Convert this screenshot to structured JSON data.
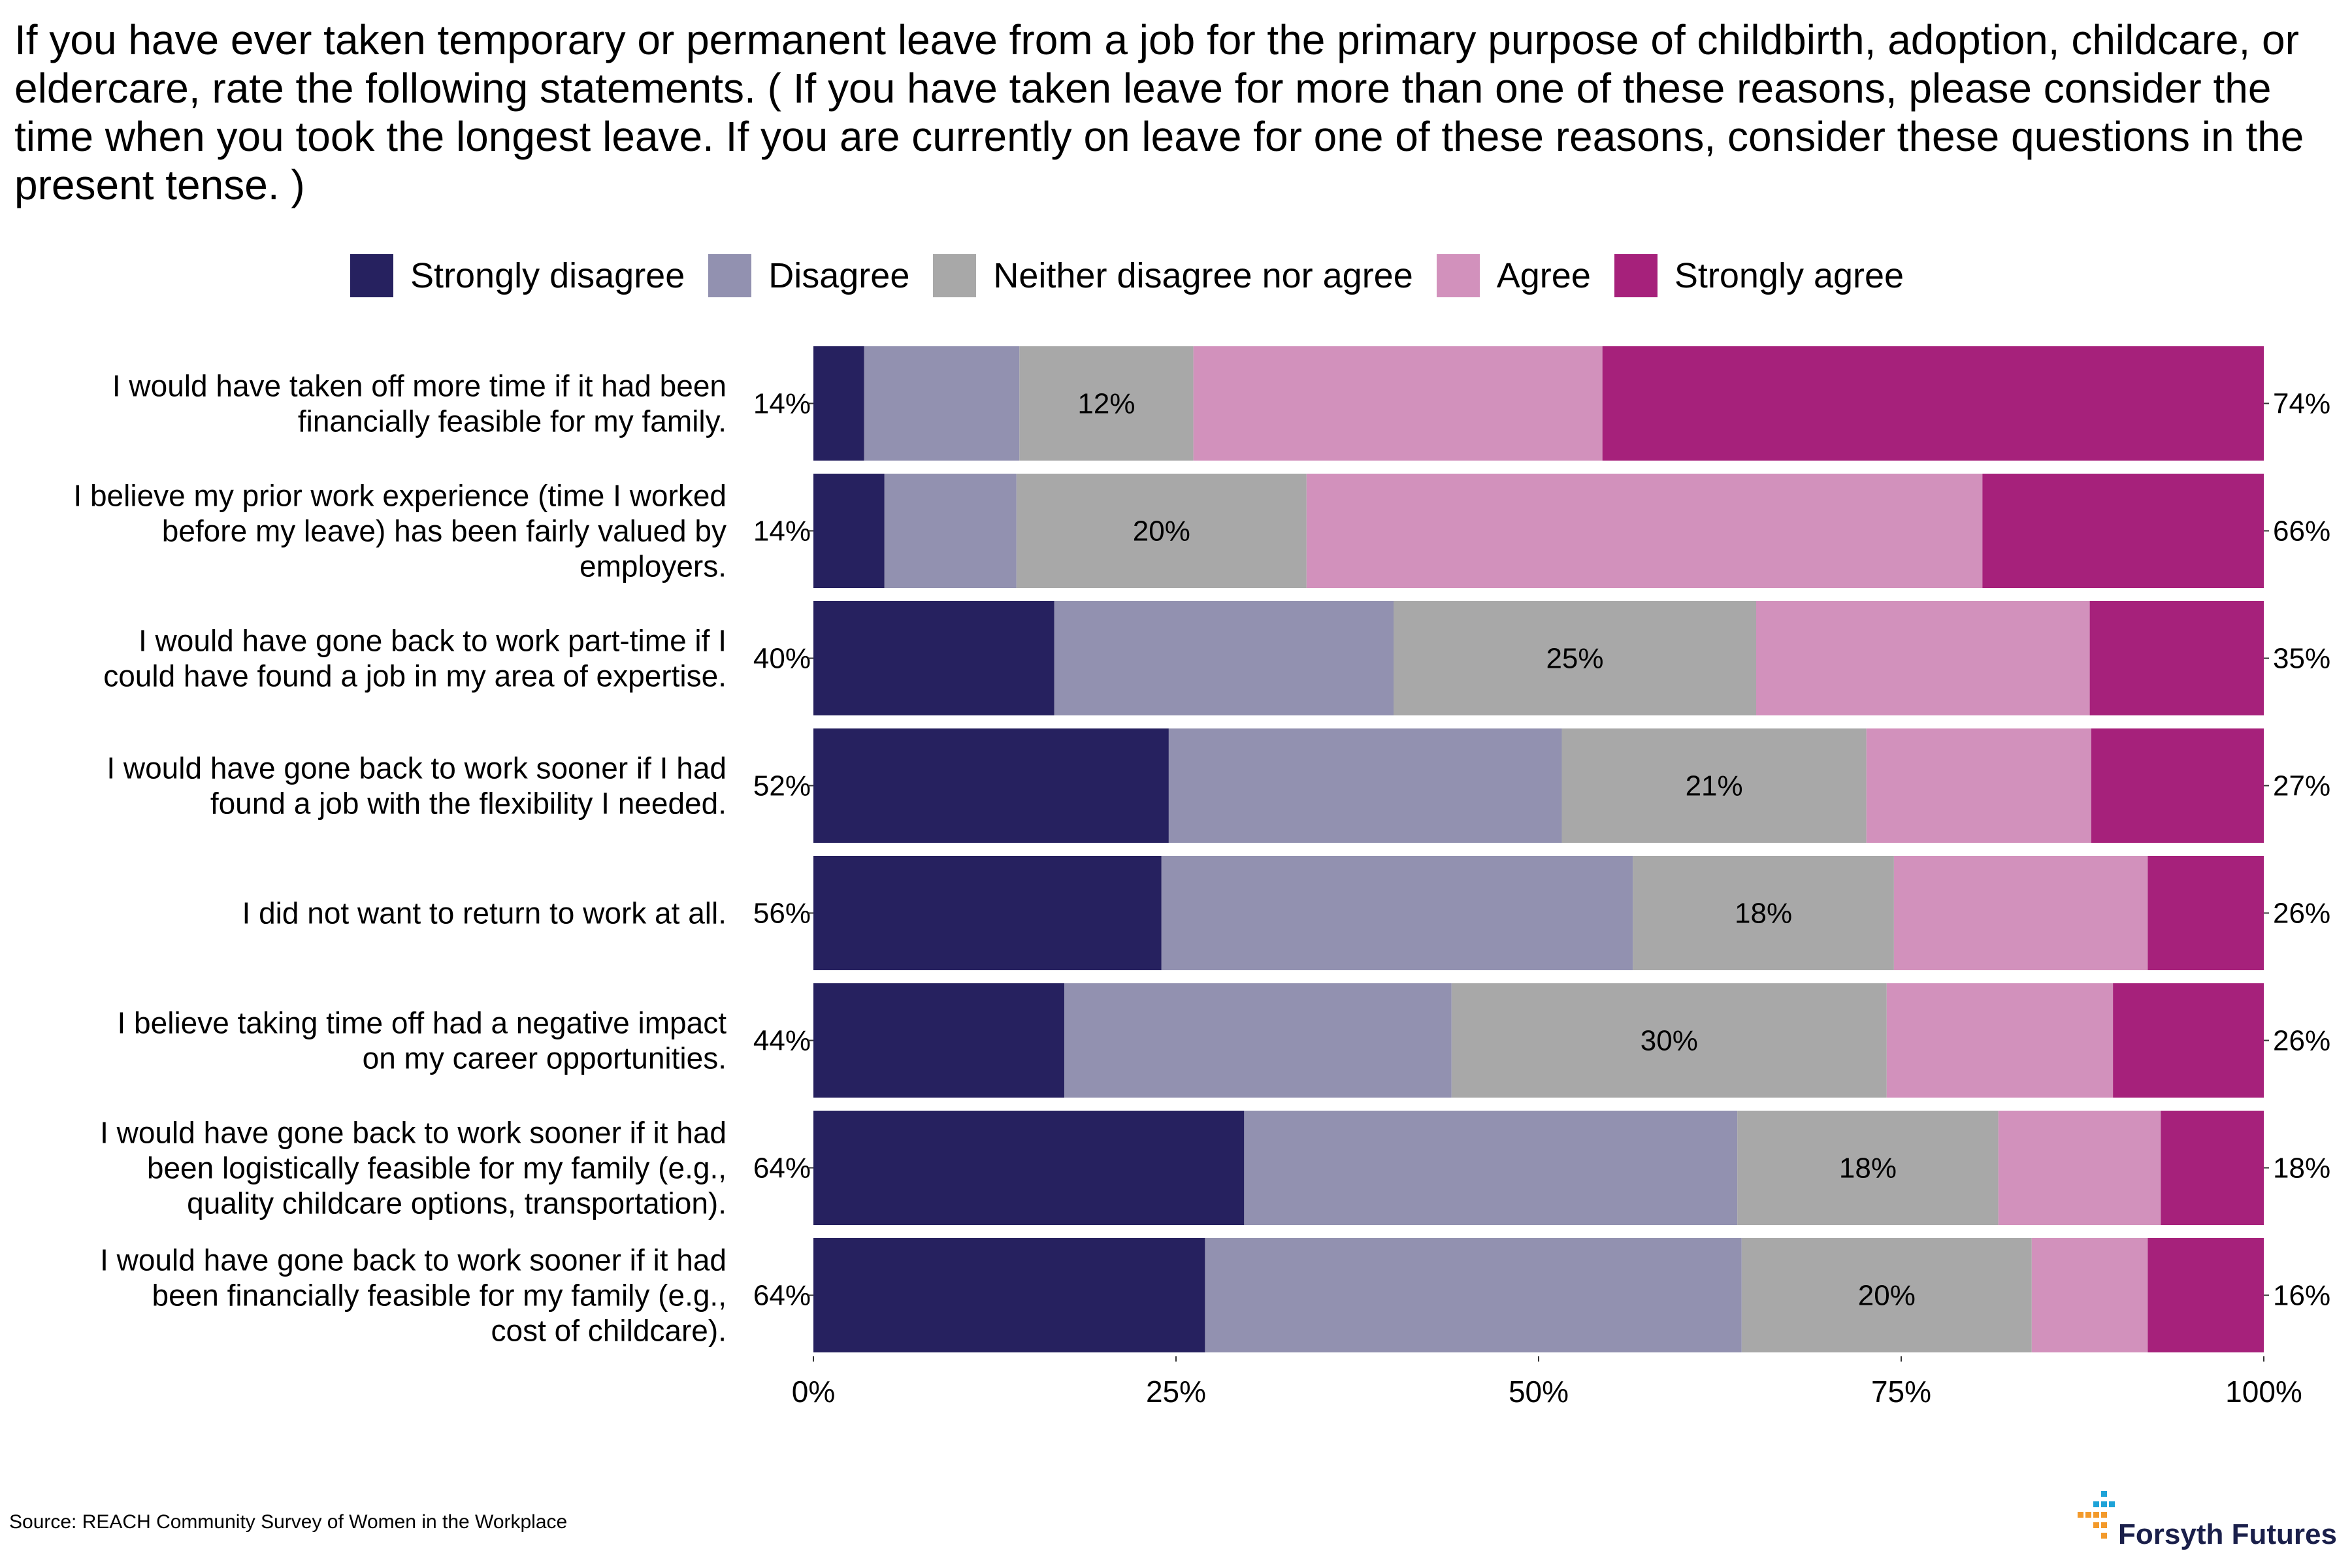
{
  "title": "If you have ever taken temporary or permanent leave from a job for the primary purpose of childbirth, adoption, childcare, or eldercare, rate the following statements. ( If you have taken leave for more than one of these reasons, please consider the time when you took the longest leave. If you are currently on leave for one of these reasons, consider these questions in the present tense. )",
  "source": "Source: REACH Community Survey of Women in the Workplace",
  "brand": {
    "name": "Forsyth Futures"
  },
  "colors": {
    "strongly_disagree": "#26215f",
    "disagree": "#9291b0",
    "neither": "#a8a8a8",
    "agree": "#d291bc",
    "strongly_agree": "#a6217b"
  },
  "chart_data": {
    "type": "bar",
    "orientation": "horizontal",
    "stacked": true,
    "series": [
      {
        "name": "Strongly disagree",
        "color": "#26215f",
        "values": [
          3.5,
          4.9,
          16.6,
          24.5,
          24.0,
          17.3,
          29.7,
          27.0
        ]
      },
      {
        "name": "Disagree",
        "color": "#9291b0",
        "values": [
          10.7,
          9.1,
          23.4,
          27.1,
          32.5,
          26.7,
          34.0,
          37.0
        ]
      },
      {
        "name": "Neither disagree nor agree",
        "color": "#a8a8a8",
        "values": [
          12.0,
          20.0,
          25.0,
          21.0,
          18.0,
          30.0,
          18.0,
          20.0
        ]
      },
      {
        "name": "Agree",
        "color": "#d291bc",
        "values": [
          28.2,
          46.6,
          23.0,
          15.5,
          17.5,
          15.6,
          11.2,
          8.0
        ]
      },
      {
        "name": "Strongly agree",
        "color": "#a6217b",
        "values": [
          45.6,
          19.4,
          12.0,
          11.9,
          8.0,
          10.4,
          7.1,
          8.0
        ]
      }
    ],
    "categories": [
      [
        "I would have taken off more time if it had been",
        "financially feasible for my family."
      ],
      [
        "I believe my prior work experience (time I worked",
        "before my leave) has been fairly valued by",
        "employers."
      ],
      [
        "I would have gone back to work part-time if I",
        "could have found a job in my area of expertise."
      ],
      [
        "I would have gone back to work sooner if I had",
        "found a job with the flexibility I needed."
      ],
      [
        "I did not want to return to work at all."
      ],
      [
        "I believe taking time off had a negative impact",
        "on my career opportunities."
      ],
      [
        "I would have gone back to work sooner if it had",
        "been logistically feasible for my family (e.g.,",
        "quality childcare options, transportation)."
      ],
      [
        "I would have gone back to work sooner if it had",
        "been financially feasible for my family (e.g.,",
        "cost of childcare)."
      ]
    ],
    "disagree_totals": [
      "14%",
      "14%",
      "40%",
      "52%",
      "56%",
      "44%",
      "64%",
      "64%"
    ],
    "neither_labels": [
      "12%",
      "20%",
      "25%",
      "21%",
      "18%",
      "30%",
      "18%",
      "20%"
    ],
    "agree_totals": [
      "74%",
      "66%",
      "35%",
      "27%",
      "26%",
      "26%",
      "18%",
      "16%"
    ],
    "xlim": [
      0,
      100
    ],
    "xticks": [
      "0%",
      "25%",
      "50%",
      "75%",
      "100%"
    ],
    "legend_position": "top",
    "grid": false
  }
}
